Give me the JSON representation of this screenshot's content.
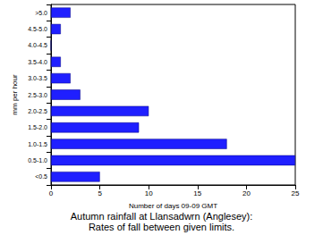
{
  "chart_data": {
    "type": "bar",
    "orientation": "horizontal",
    "title": "Autumn rainfall at Llansadwrn (Anglesey):",
    "subtitle": "Rates of fall between given limits.",
    "x_label": "Number of days 09-09 GMT",
    "y_label": "mm per hour",
    "categories": [
      "<0.5",
      "0.5-1.0",
      "1.0-1.5",
      "1.5-2.0",
      "2.0-2.5",
      "2.5-3.0",
      "3.0-3.5",
      "3.5-4.0",
      "4.0-4.5",
      "4.5-5.0",
      ">5.0"
    ],
    "values": [
      5,
      25,
      18,
      9,
      10,
      3,
      2,
      1,
      0,
      1,
      2
    ],
    "color": "#1f1fff",
    "xlim": [
      0,
      25
    ],
    "xticks": [
      0,
      5,
      10,
      15,
      20,
      25
    ],
    "grid": false
  }
}
